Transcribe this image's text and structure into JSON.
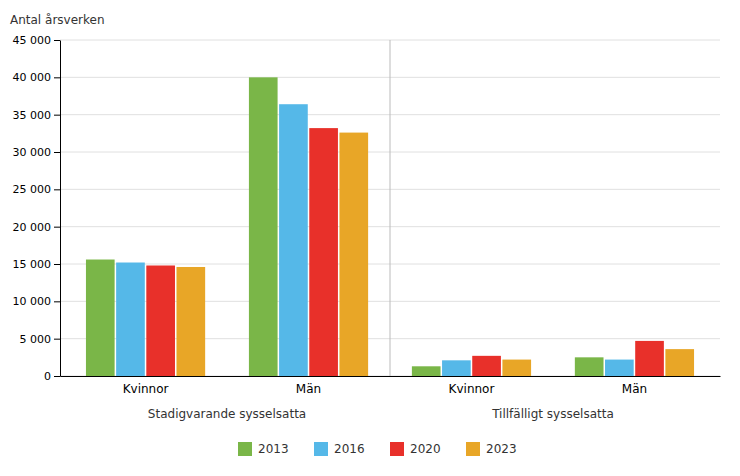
{
  "chart_data": {
    "type": "bar",
    "ylabel": "Antal årsverken",
    "categories": [
      "Kvinnor",
      "Män",
      "Kvinnor",
      "Män"
    ],
    "category_groups": [
      "Stadigvarande sysselsatta",
      "Tillfälligt sysselsatta"
    ],
    "series": [
      {
        "name": "2013",
        "color": "#7ab648",
        "values": [
          15600,
          40000,
          1300,
          2500
        ]
      },
      {
        "name": "2016",
        "color": "#55b8e8",
        "values": [
          15200,
          36400,
          2100,
          2200
        ]
      },
      {
        "name": "2020",
        "color": "#e8302a",
        "values": [
          14800,
          33200,
          2700,
          4700
        ]
      },
      {
        "name": "2023",
        "color": "#e8a627",
        "values": [
          14600,
          32600,
          2200,
          3600
        ]
      }
    ],
    "ylim": [
      0,
      45000
    ],
    "yticks": [
      0,
      {
        "value": 5000,
        "label": "5 000"
      },
      {
        "value": 10000,
        "label": "10 000"
      },
      {
        "value": 15000,
        "label": "15 000"
      },
      {
        "value": 20000,
        "label": "20 000"
      },
      {
        "value": 25000,
        "label": "25 000"
      },
      {
        "value": 30000,
        "label": "30 000"
      },
      {
        "value": 35000,
        "label": "35 000"
      },
      {
        "value": 40000,
        "label": "40 000"
      },
      {
        "value": 45000,
        "label": "45 000"
      }
    ],
    "grid": true,
    "legend": "bottom"
  }
}
